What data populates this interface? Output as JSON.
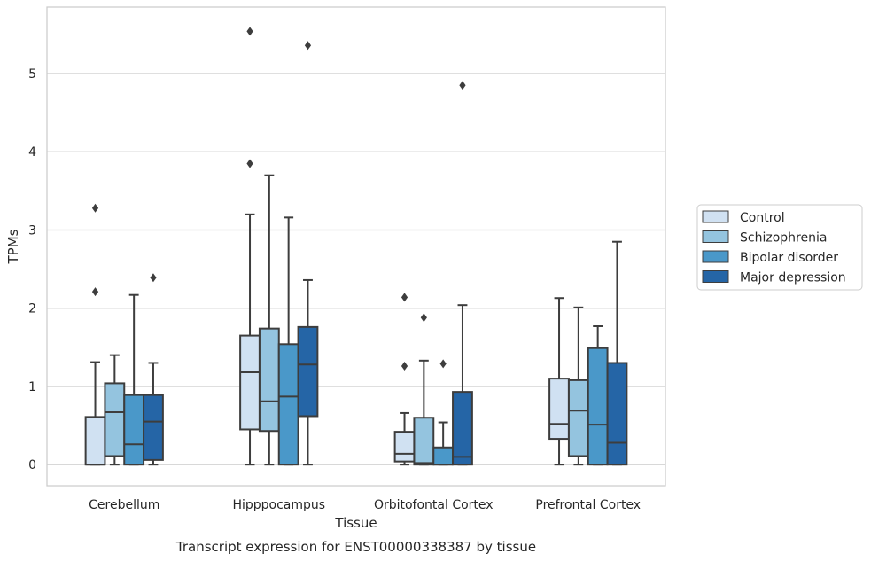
{
  "chart_data": {
    "type": "boxplot",
    "title": "Transcript expression for ENST00000338387 by tissue",
    "xlabel": "Tissue",
    "ylabel": "TPMs",
    "ylim": [
      -0.27,
      5.85
    ],
    "yticks": [
      0,
      1,
      2,
      3,
      4,
      5
    ],
    "grid": "horizontal",
    "legend": "right",
    "categories": [
      "Cerebellum",
      "Hipppocampus",
      "Orbitofontal Cortex",
      "Prefrontal Cortex"
    ],
    "series": [
      {
        "name": "Control",
        "color": "#d0e1f2",
        "boxes": [
          {
            "whislo": 0.0,
            "q1": 0.0,
            "med": 0.0,
            "q3": 0.61,
            "whishi": 1.31,
            "fliers": [
              2.21,
              3.28
            ]
          },
          {
            "whislo": 0.0,
            "q1": 0.45,
            "med": 1.18,
            "q3": 1.65,
            "whishi": 3.2,
            "fliers": [
              3.85,
              5.54
            ]
          },
          {
            "whislo": 0.0,
            "q1": 0.04,
            "med": 0.14,
            "q3": 0.42,
            "whishi": 0.66,
            "fliers": [
              1.26,
              2.14
            ]
          },
          {
            "whislo": 0.0,
            "q1": 0.33,
            "med": 0.52,
            "q3": 1.1,
            "whishi": 2.13,
            "fliers": []
          }
        ]
      },
      {
        "name": "Schizophrenia",
        "color": "#94c4df",
        "boxes": [
          {
            "whislo": 0.0,
            "q1": 0.11,
            "med": 0.67,
            "q3": 1.04,
            "whishi": 1.4,
            "fliers": []
          },
          {
            "whislo": 0.0,
            "q1": 0.43,
            "med": 0.81,
            "q3": 1.74,
            "whishi": 3.7,
            "fliers": []
          },
          {
            "whislo": 0.0,
            "q1": 0.0,
            "med": 0.02,
            "q3": 0.6,
            "whishi": 1.33,
            "fliers": [
              1.88
            ]
          },
          {
            "whislo": 0.0,
            "q1": 0.11,
            "med": 0.69,
            "q3": 1.08,
            "whishi": 2.01,
            "fliers": []
          }
        ]
      },
      {
        "name": "Bipolar disorder",
        "color": "#4a98c9",
        "boxes": [
          {
            "whislo": 0.0,
            "q1": 0.0,
            "med": 0.26,
            "q3": 0.89,
            "whishi": 2.17,
            "fliers": []
          },
          {
            "whislo": 0.0,
            "q1": 0.0,
            "med": 0.87,
            "q3": 1.54,
            "whishi": 3.16,
            "fliers": []
          },
          {
            "whislo": 0.0,
            "q1": 0.0,
            "med": 0.0,
            "q3": 0.22,
            "whishi": 0.54,
            "fliers": [
              1.29
            ]
          },
          {
            "whislo": 0.0,
            "q1": 0.0,
            "med": 0.51,
            "q3": 1.49,
            "whishi": 1.77,
            "fliers": []
          }
        ]
      },
      {
        "name": "Major depression",
        "color": "#2565a6",
        "boxes": [
          {
            "whislo": 0.0,
            "q1": 0.06,
            "med": 0.55,
            "q3": 0.89,
            "whishi": 1.3,
            "fliers": [
              2.39
            ]
          },
          {
            "whislo": 0.0,
            "q1": 0.62,
            "med": 1.28,
            "q3": 1.76,
            "whishi": 2.36,
            "fliers": [
              5.36
            ]
          },
          {
            "whislo": 0.0,
            "q1": 0.0,
            "med": 0.1,
            "q3": 0.93,
            "whishi": 2.04,
            "fliers": [
              4.85
            ]
          },
          {
            "whislo": 0.0,
            "q1": 0.0,
            "med": 0.28,
            "q3": 1.3,
            "whishi": 2.85,
            "fliers": []
          }
        ]
      }
    ]
  }
}
